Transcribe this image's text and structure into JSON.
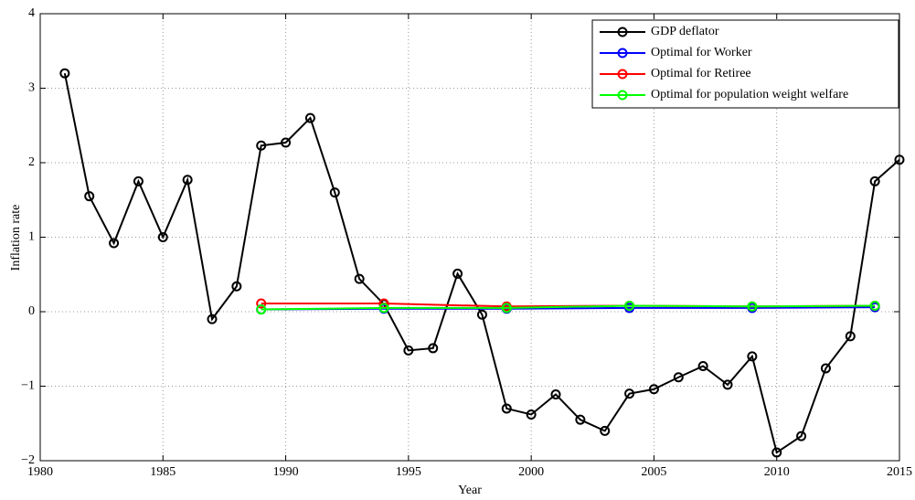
{
  "chart_data": {
    "type": "line",
    "xlabel": "Year",
    "ylabel": "Inflation rate",
    "xlim": [
      1980,
      2015
    ],
    "xticks": [
      1980,
      1985,
      1990,
      1995,
      2000,
      2005,
      2010,
      2015
    ],
    "ylim": [
      -2,
      4
    ],
    "yticks": [
      {
        "value": -2,
        "label": "−2"
      },
      {
        "value": -1,
        "label": "−1"
      },
      0,
      1,
      2,
      3,
      4
    ],
    "grid": true,
    "legend": "upper right",
    "series": [
      {
        "name": "GDP deflator",
        "color": "#000000",
        "x": [
          1981,
          1982,
          1983,
          1984,
          1985,
          1986,
          1987,
          1988,
          1989,
          1990,
          1991,
          1992,
          1993,
          1994,
          1995,
          1996,
          1997,
          1998,
          1999,
          2000,
          2001,
          2002,
          2003,
          2004,
          2005,
          2006,
          2007,
          2008,
          2009,
          2010,
          2011,
          2012,
          2013,
          2014,
          2015
        ],
        "values": [
          3.2,
          1.55,
          0.92,
          1.75,
          1.0,
          1.77,
          -0.1,
          0.34,
          2.23,
          2.27,
          2.6,
          1.6,
          0.44,
          0.1,
          -0.52,
          -0.49,
          0.51,
          -0.04,
          -1.3,
          -1.38,
          -1.11,
          -1.45,
          -1.6,
          -1.1,
          -1.04,
          -0.88,
          -0.73,
          -0.98,
          -0.6,
          -1.89,
          -1.67,
          -0.76,
          -0.33,
          1.75,
          2.04
        ]
      },
      {
        "name": "Optimal for Worker",
        "color": "#0000ff",
        "x": [
          1989,
          1994,
          1999,
          2004,
          2009,
          2014
        ],
        "values": [
          0.03,
          0.04,
          0.04,
          0.05,
          0.05,
          0.06
        ]
      },
      {
        "name": "Optimal for Retiree",
        "color": "#ff0000",
        "x": [
          1989,
          1994,
          1999,
          2004,
          2009,
          2014
        ],
        "values": [
          0.11,
          0.11,
          0.07,
          0.08,
          0.07,
          0.08
        ]
      },
      {
        "name": "Optimal for population weight welfare",
        "color": "#00ff00",
        "x": [
          1989,
          1994,
          1999,
          2004,
          2009,
          2014
        ],
        "values": [
          0.03,
          0.05,
          0.05,
          0.08,
          0.07,
          0.08
        ]
      }
    ]
  }
}
